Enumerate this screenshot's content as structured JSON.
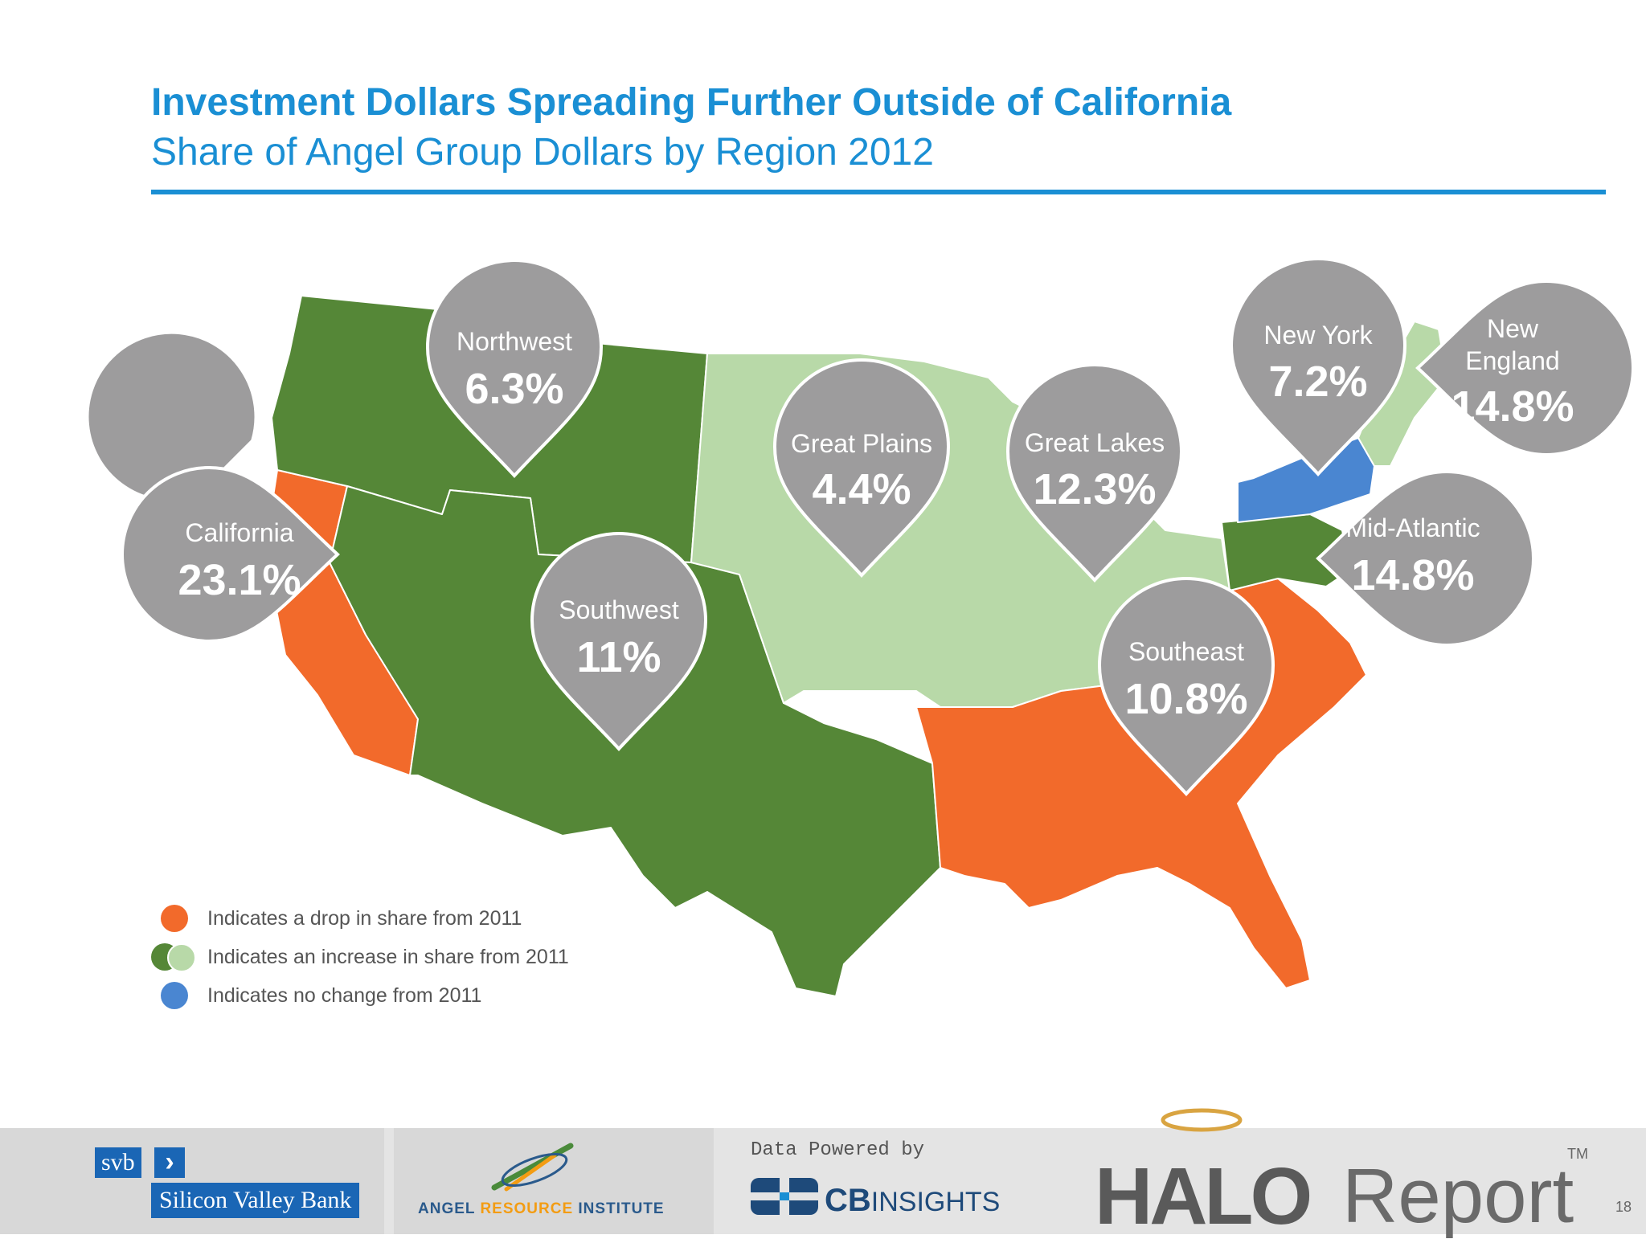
{
  "header": {
    "title": "Investment Dollars Spreading Further Outside of California",
    "subtitle": "Share of Angel Group Dollars by Region 2012"
  },
  "colors": {
    "accent": "#1a8fd4",
    "drop": "#f26a2b",
    "increase_dark": "#558737",
    "increase_light": "#b8d9a8",
    "no_change": "#4a86d1",
    "pin": "#9d9c9d"
  },
  "regions": [
    {
      "id": "california",
      "label": "California",
      "value": "23.1%",
      "status": "drop"
    },
    {
      "id": "northwest",
      "label": "Northwest",
      "value": "6.3%",
      "status": "increase"
    },
    {
      "id": "southwest",
      "label": "Southwest",
      "value": "11%",
      "status": "increase"
    },
    {
      "id": "great-plains",
      "label": "Great Plains",
      "value": "4.4%",
      "status": "increase"
    },
    {
      "id": "great-lakes",
      "label": "Great Lakes",
      "value": "12.3%",
      "status": "increase"
    },
    {
      "id": "new-york",
      "label": "New York",
      "value": "7.2%",
      "status": "no change"
    },
    {
      "id": "new-england",
      "label": "New England",
      "value": "14.8%",
      "status": "increase"
    },
    {
      "id": "mid-atlantic",
      "label": "Mid-Atlantic",
      "value": "14.8%",
      "status": "increase"
    },
    {
      "id": "southeast",
      "label": "Southeast",
      "value": "10.8%",
      "status": "drop"
    }
  ],
  "legend": [
    {
      "text": "Indicates a drop in share from 2011",
      "icon": "orange-dot"
    },
    {
      "text": "Indicates an increase in share from 2011",
      "icon": "green-dots"
    },
    {
      "text": "Indicates no change from 2011",
      "icon": "blue-dot"
    }
  ],
  "footer": {
    "svb_badge": "svb",
    "svb_name": "Silicon Valley Bank",
    "ari_left": "ANGEL ",
    "ari_mid": "RESOURCE",
    "ari_right": " INSTITUTE",
    "data_powered_by": "Data Powered by",
    "cb_bold": "CB",
    "cb_light": "INSIGHTS",
    "halo": "HALO",
    "report": "Report",
    "tm": "TM",
    "page_number": "18"
  }
}
